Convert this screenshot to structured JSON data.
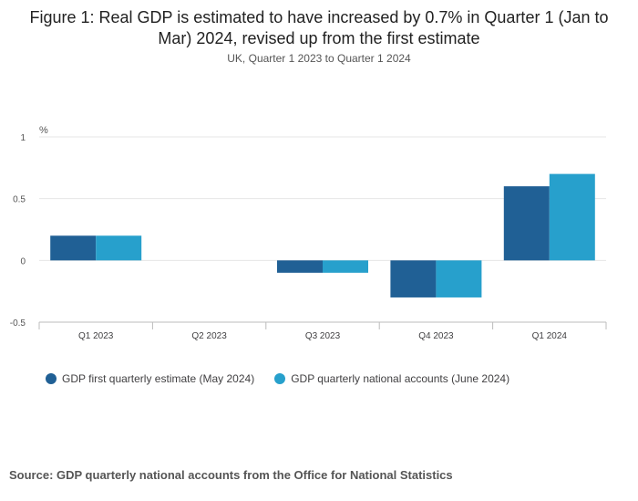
{
  "chart_data": {
    "type": "bar",
    "title": "Figure 1: Real GDP is estimated to have increased by 0.7% in Quarter 1 (Jan to Mar) 2024, revised up from the first estimate",
    "subtitle": "UK, Quarter 1 2023 to Quarter 1 2024",
    "ylabel": "%",
    "xlabel": "",
    "ylim": [
      -0.5,
      1
    ],
    "yticks": [
      "1",
      "0.5",
      "0",
      "-0.5"
    ],
    "ytick_values": [
      1,
      0.5,
      0,
      -0.5
    ],
    "grid": true,
    "legend": "bottom-left",
    "categories": [
      "Q1 2023",
      "Q2 2023",
      "Q3 2023",
      "Q4 2023",
      "Q1 2024"
    ],
    "series": [
      {
        "name": "GDP first quarterly estimate (May 2024)",
        "color": "#206095",
        "values": [
          0.2,
          0.0,
          -0.1,
          -0.3,
          0.6
        ]
      },
      {
        "name": "GDP quarterly national accounts (June 2024)",
        "color": "#27a0cc",
        "values": [
          0.2,
          0.0,
          -0.1,
          -0.3,
          0.7
        ]
      }
    ]
  },
  "source": "Source: GDP quarterly national accounts from the Office for National Statistics"
}
